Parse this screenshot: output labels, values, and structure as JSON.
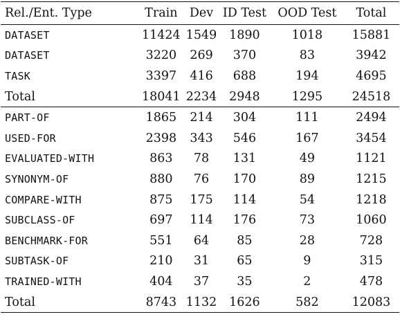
{
  "table": {
    "headers": [
      "Rel./Ent. Type",
      "Train",
      "Dev",
      "ID Test",
      "OOD Test",
      "Total"
    ],
    "entity_rows": [
      {
        "type": "DATASET",
        "mono": true,
        "train": "11424",
        "dev": "1549",
        "id_test": "1890",
        "ood_test": "1018",
        "total": "15881"
      },
      {
        "type": "DATASET",
        "mono": true,
        "train": "3220",
        "dev": "269",
        "id_test": "370",
        "ood_test": "83",
        "total": "3942"
      },
      {
        "type": "TASK",
        "mono": true,
        "train": "3397",
        "dev": "416",
        "id_test": "688",
        "ood_test": "194",
        "total": "4695"
      },
      {
        "type": "Total",
        "mono": false,
        "train": "18041",
        "dev": "2234",
        "id_test": "2948",
        "ood_test": "1295",
        "total": "24518"
      }
    ],
    "relation_rows": [
      {
        "type": "PART-OF",
        "mono": true,
        "train": "1865",
        "dev": "214",
        "id_test": "304",
        "ood_test": "111",
        "total": "2494"
      },
      {
        "type": "USED-FOR",
        "mono": true,
        "train": "2398",
        "dev": "343",
        "id_test": "546",
        "ood_test": "167",
        "total": "3454"
      },
      {
        "type": "EVALUATED-WITH",
        "mono": true,
        "train": "863",
        "dev": "78",
        "id_test": "131",
        "ood_test": "49",
        "total": "1121"
      },
      {
        "type": "SYNONYM-OF",
        "mono": true,
        "train": "880",
        "dev": "76",
        "id_test": "170",
        "ood_test": "89",
        "total": "1215"
      },
      {
        "type": "COMPARE-WITH",
        "mono": true,
        "train": "875",
        "dev": "175",
        "id_test": "114",
        "ood_test": "54",
        "total": "1218"
      },
      {
        "type": "SUBCLASS-OF",
        "mono": true,
        "train": "697",
        "dev": "114",
        "id_test": "176",
        "ood_test": "73",
        "total": "1060"
      },
      {
        "type": "BENCHMARK-FOR",
        "mono": true,
        "train": "551",
        "dev": "64",
        "id_test": "85",
        "ood_test": "28",
        "total": "728"
      },
      {
        "type": "SUBTASK-OF",
        "mono": true,
        "train": "210",
        "dev": "31",
        "id_test": "65",
        "ood_test": "9",
        "total": "315"
      },
      {
        "type": "TRAINED-WITH",
        "mono": true,
        "train": "404",
        "dev": "37",
        "id_test": "35",
        "ood_test": "2",
        "total": "478"
      },
      {
        "type": "Total",
        "mono": false,
        "train": "8743",
        "dev": "1132",
        "id_test": "1626",
        "ood_test": "582",
        "total": "12083"
      }
    ]
  }
}
